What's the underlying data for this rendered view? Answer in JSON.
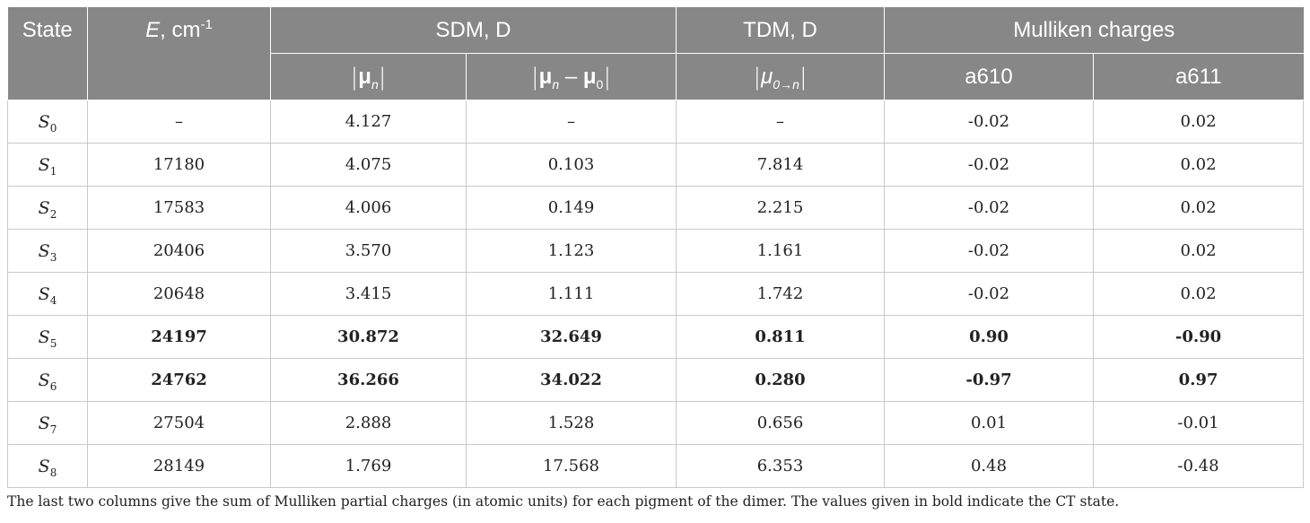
{
  "table": {
    "headers": {
      "state": "State",
      "energy": {
        "symbol": "E",
        "unit": ", cm",
        "exp": "-1"
      },
      "sdm": "SDM, D",
      "tdm": "TDM, D",
      "mulliken": "Mulliken charges",
      "sub_mu_n": {
        "mu": "μ",
        "sub": "n"
      },
      "sub_mu_diff": {
        "mu1": "μ",
        "sub1": "n",
        "minus": " – ",
        "mu2": "μ",
        "sub2": "0"
      },
      "sub_tdm": {
        "mu": "μ",
        "sub": "0→n"
      },
      "a610": "a610",
      "a611": "a611"
    },
    "rows": [
      {
        "sym": "S",
        "sub": "0",
        "E": "–",
        "mu_n": "4.127",
        "mu_diff": "–",
        "tdm": "–",
        "a610": "-0.02",
        "a611": "0.02",
        "bold": false
      },
      {
        "sym": "S",
        "sub": "1",
        "E": "17180",
        "mu_n": "4.075",
        "mu_diff": "0.103",
        "tdm": "7.814",
        "a610": "-0.02",
        "a611": "0.02",
        "bold": false
      },
      {
        "sym": "S",
        "sub": "2",
        "E": "17583",
        "mu_n": "4.006",
        "mu_diff": "0.149",
        "tdm": "2.215",
        "a610": "-0.02",
        "a611": "0.02",
        "bold": false
      },
      {
        "sym": "S",
        "sub": "3",
        "E": "20406",
        "mu_n": "3.570",
        "mu_diff": "1.123",
        "tdm": "1.161",
        "a610": "-0.02",
        "a611": "0.02",
        "bold": false
      },
      {
        "sym": "S",
        "sub": "4",
        "E": "20648",
        "mu_n": "3.415",
        "mu_diff": "1.111",
        "tdm": "1.742",
        "a610": "-0.02",
        "a611": "0.02",
        "bold": false
      },
      {
        "sym": "S",
        "sub": "5",
        "E": "24197",
        "mu_n": "30.872",
        "mu_diff": "32.649",
        "tdm": "0.811",
        "a610": "0.90",
        "a611": "-0.90",
        "bold": true
      },
      {
        "sym": "S",
        "sub": "6",
        "E": "24762",
        "mu_n": "36.266",
        "mu_diff": "34.022",
        "tdm": "0.280",
        "a610": "-0.97",
        "a611": "0.97",
        "bold": true
      },
      {
        "sym": "S",
        "sub": "7",
        "E": "27504",
        "mu_n": "2.888",
        "mu_diff": "1.528",
        "tdm": "0.656",
        "a610": "0.01",
        "a611": "-0.01",
        "bold": false
      },
      {
        "sym": "S",
        "sub": "8",
        "E": "28149",
        "mu_n": "1.769",
        "mu_diff": "17.568",
        "tdm": "6.353",
        "a610": "0.48",
        "a611": "-0.48",
        "bold": false
      }
    ]
  },
  "footnote": "The last two columns give the sum of Mulliken partial charges (in atomic units) for each pigment of the dimer. The values given in bold indicate the CT state."
}
